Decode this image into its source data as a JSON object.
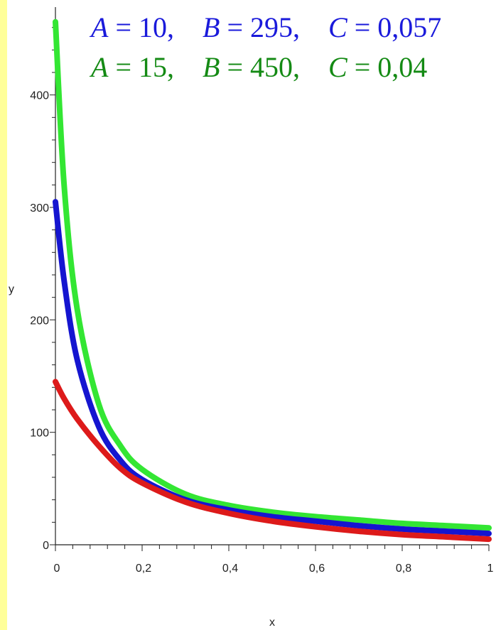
{
  "chart_data": {
    "type": "line",
    "title": "",
    "xlabel": "x",
    "ylabel": "y",
    "xlim": [
      0,
      1
    ],
    "ylim": [
      0,
      480
    ],
    "x_ticks": [
      0,
      0.2,
      0.4,
      0.6,
      0.8,
      1
    ],
    "x_tick_labels": [
      "0",
      "0,2",
      "0,4",
      "0,6",
      "0,8",
      "1"
    ],
    "y_ticks": [
      0,
      100,
      200,
      300,
      400
    ],
    "y_tick_labels": [
      "0",
      "100",
      "200",
      "300",
      "400"
    ],
    "grid": false,
    "legend": "none",
    "annotations": [
      {
        "color": "#1a1adb",
        "parts": [
          {
            "t": "A",
            "v": true
          },
          {
            "t": " = 10,    ",
            "v": false
          },
          {
            "t": "B",
            "v": true
          },
          {
            "t": " = 295,    ",
            "v": false
          },
          {
            "t": "C",
            "v": true
          },
          {
            "t": " = 0,057",
            "v": false
          }
        ]
      },
      {
        "color": "#148a14",
        "parts": [
          {
            "t": "A",
            "v": true
          },
          {
            "t": " = 15,    ",
            "v": false
          },
          {
            "t": "B",
            "v": true
          },
          {
            "t": " = 450,    ",
            "v": false
          },
          {
            "t": "C",
            "v": true
          },
          {
            "t": " = 0,04",
            "v": false
          }
        ]
      }
    ],
    "series": [
      {
        "color": "#33e633",
        "x": [
          0,
          0.02,
          0.05,
          0.1,
          0.15,
          0.2,
          0.3,
          0.4,
          0.5,
          0.6,
          0.7,
          0.8,
          0.9,
          1
        ],
        "y": [
          465,
          320,
          210,
          125,
          88,
          67,
          45,
          35,
          29,
          25,
          22,
          19,
          17,
          15
        ]
      },
      {
        "color": "#1515d0",
        "x": [
          0,
          0.02,
          0.05,
          0.1,
          0.15,
          0.2,
          0.3,
          0.4,
          0.5,
          0.6,
          0.7,
          0.8,
          0.9,
          1
        ],
        "y": [
          305,
          235,
          165,
          105,
          75,
          58,
          40,
          31,
          25,
          21,
          17,
          14,
          12,
          10
        ]
      },
      {
        "color": "#dd1a1a",
        "x": [
          0,
          0.02,
          0.05,
          0.1,
          0.15,
          0.2,
          0.3,
          0.4,
          0.5,
          0.6,
          0.7,
          0.8,
          0.9,
          1
        ],
        "y": [
          145,
          130,
          112,
          88,
          68,
          55,
          38,
          28,
          21,
          16,
          12,
          9,
          7,
          5
        ]
      }
    ]
  }
}
